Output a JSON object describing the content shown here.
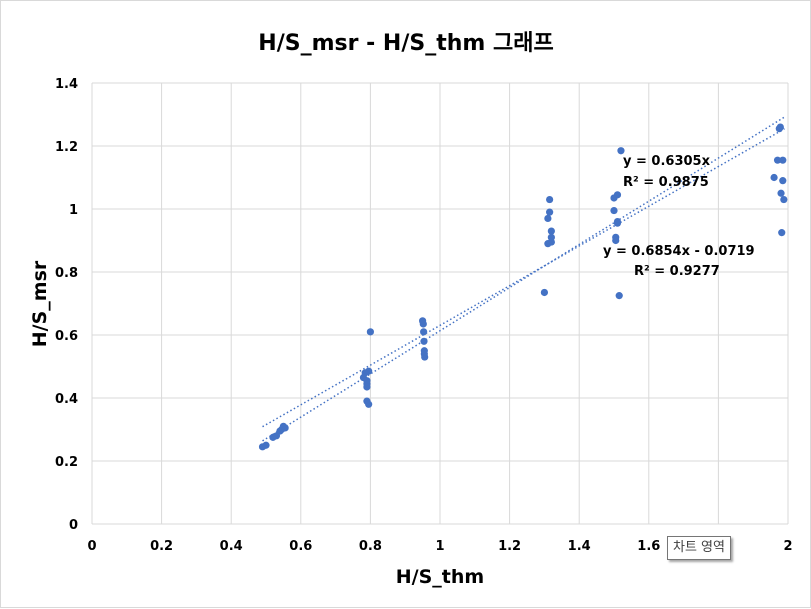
{
  "chart_data": {
    "type": "scatter",
    "title": "H/S_msr - H/S_thm 그래프",
    "xlabel": "H/S_thm",
    "ylabel": "H/S_msr",
    "xlim": [
      0,
      2
    ],
    "ylim": [
      0,
      1.4
    ],
    "xticks": [
      "0",
      "0.2",
      "0.4",
      "0.6",
      "0.8",
      "1",
      "1.2",
      "1.4",
      "1.6",
      "1.8",
      "2"
    ],
    "yticks": [
      "0",
      "0.2",
      "0.4",
      "0.6",
      "0.8",
      "1",
      "1.2",
      "1.4"
    ],
    "grid": true,
    "legend": "none",
    "marker_color": "#4472c4",
    "series": [
      {
        "points": [
          [
            0.49,
            0.245
          ],
          [
            0.5,
            0.25
          ],
          [
            0.52,
            0.275
          ],
          [
            0.53,
            0.28
          ],
          [
            0.54,
            0.295
          ],
          [
            0.545,
            0.3
          ],
          [
            0.55,
            0.31
          ],
          [
            0.555,
            0.305
          ],
          [
            0.78,
            0.465
          ],
          [
            0.785,
            0.48
          ],
          [
            0.79,
            0.445
          ],
          [
            0.79,
            0.435
          ],
          [
            0.79,
            0.455
          ],
          [
            0.79,
            0.39
          ],
          [
            0.795,
            0.38
          ],
          [
            0.795,
            0.485
          ],
          [
            0.8,
            0.61
          ],
          [
            0.95,
            0.645
          ],
          [
            0.952,
            0.635
          ],
          [
            0.953,
            0.61
          ],
          [
            0.954,
            0.58
          ],
          [
            0.955,
            0.55
          ],
          [
            0.955,
            0.54
          ],
          [
            0.956,
            0.53
          ],
          [
            1.3,
            0.735
          ],
          [
            1.31,
            0.89
          ],
          [
            1.31,
            0.97
          ],
          [
            1.315,
            0.99
          ],
          [
            1.315,
            1.03
          ],
          [
            1.32,
            0.93
          ],
          [
            1.32,
            0.91
          ],
          [
            1.32,
            0.895
          ],
          [
            1.5,
            1.035
          ],
          [
            1.5,
            0.995
          ],
          [
            1.505,
            0.91
          ],
          [
            1.505,
            0.9
          ],
          [
            1.51,
            1.045
          ],
          [
            1.51,
            0.96
          ],
          [
            1.51,
            0.955
          ],
          [
            1.515,
            0.725
          ],
          [
            1.52,
            1.185
          ],
          [
            1.96,
            1.1
          ],
          [
            1.97,
            1.155
          ],
          [
            1.975,
            1.255
          ],
          [
            1.978,
            1.26
          ],
          [
            1.98,
            1.05
          ],
          [
            1.982,
            0.925
          ],
          [
            1.985,
            1.155
          ],
          [
            1.985,
            1.09
          ],
          [
            1.988,
            1.03
          ]
        ]
      }
    ],
    "trendlines": [
      {
        "slope": 0.6305,
        "intercept": 0,
        "x_range": [
          0.49,
          1.99
        ],
        "equation": "y = 0.6305x",
        "r2": "R² = 0.9875"
      },
      {
        "slope": 0.6854,
        "intercept": -0.0719,
        "x_range": [
          0.49,
          1.99
        ],
        "equation": "y = 0.6854x - 0.0719",
        "r2": "R² = 0.9277"
      }
    ]
  },
  "tooltip": {
    "label": "차트 영역"
  }
}
